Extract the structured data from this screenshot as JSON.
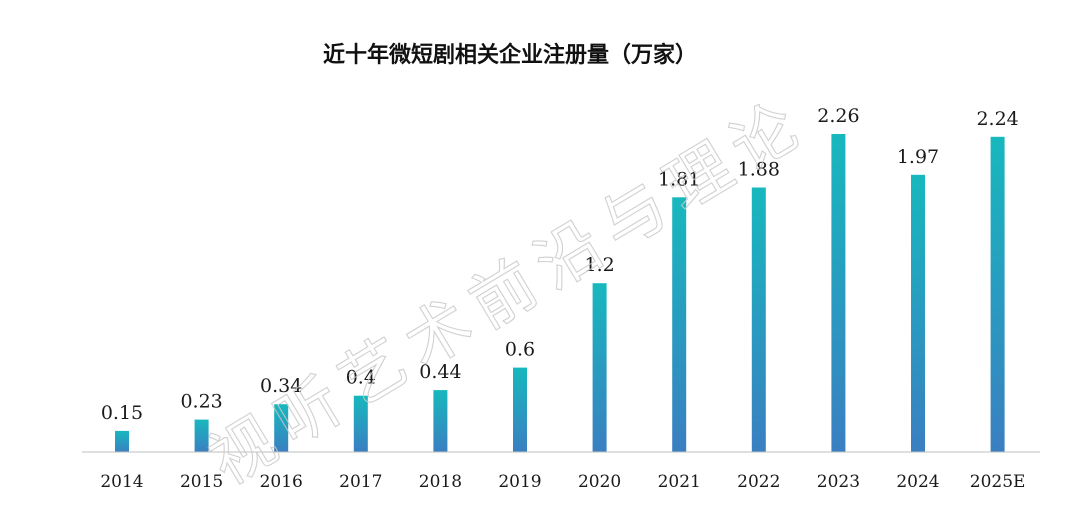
{
  "chart_data": {
    "type": "bar",
    "title": "近十年微短剧相关企业注册量（万家）",
    "categories": [
      "2014",
      "2015",
      "2016",
      "2017",
      "2018",
      "2019",
      "2020",
      "2021",
      "2022",
      "2023",
      "2024",
      "2025E"
    ],
    "values": [
      0.15,
      0.23,
      0.34,
      0.4,
      0.44,
      0.6,
      1.2,
      1.81,
      1.88,
      2.26,
      1.97,
      2.24
    ],
    "value_labels": [
      "0.15",
      "0.23",
      "0.34",
      "0.4",
      "0.44",
      "0.6",
      "1.2",
      "1.81",
      "1.88",
      "2.26",
      "1.97",
      "2.24"
    ],
    "xlabel": "",
    "ylabel": "",
    "ylim": [
      0,
      2.26
    ],
    "grid": false,
    "legend": "none",
    "bar_gradient": [
      "#17b8be",
      "#3a7fc1"
    ],
    "axis_color": "#bfbfbf"
  },
  "watermark": "视听艺术前沿与理论"
}
